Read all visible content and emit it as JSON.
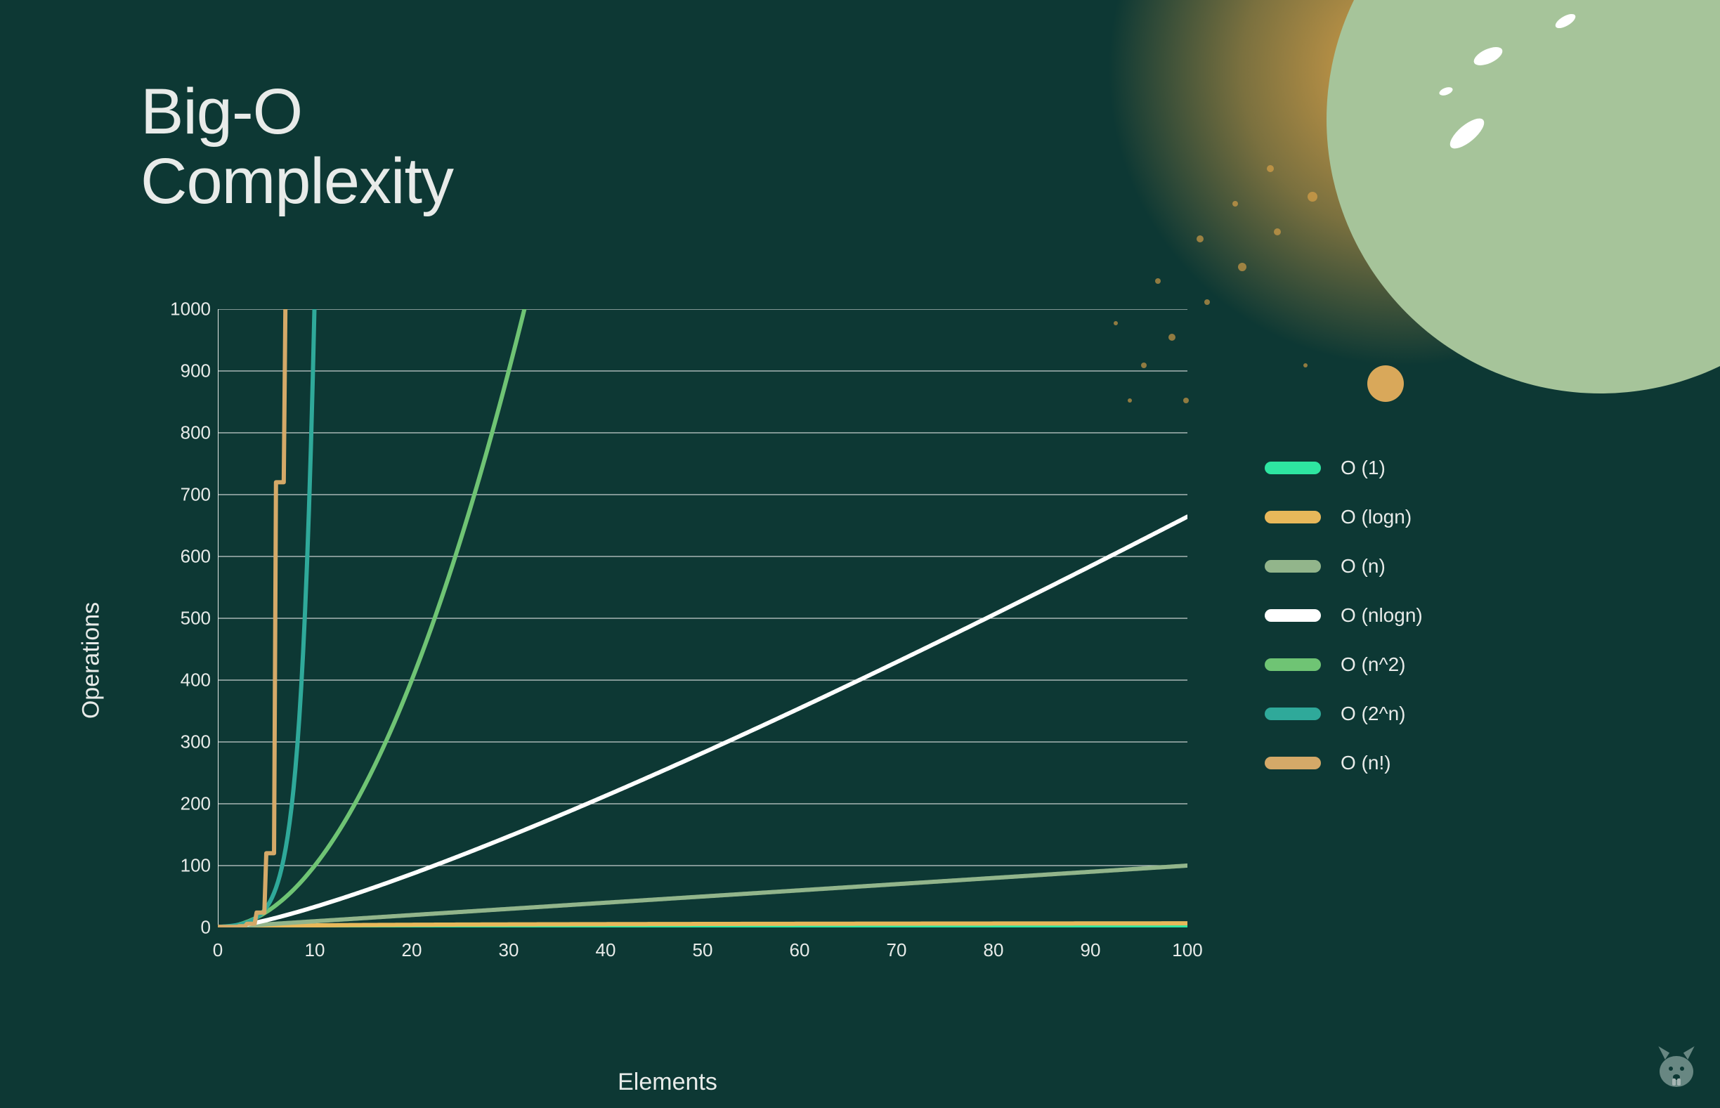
{
  "title_line1": "Big-O",
  "title_line2": "Complexity",
  "chart": {
    "type": "line",
    "xlabel": "Elements",
    "ylabel": "Operations",
    "xlabel_fontsize": 34,
    "ylabel_fontsize": 34,
    "tick_fontsize": 26,
    "xlim": [
      0,
      100
    ],
    "ylim": [
      0,
      1000
    ],
    "xticks": [
      0,
      10,
      20,
      30,
      40,
      50,
      60,
      70,
      80,
      90,
      100
    ],
    "yticks": [
      0,
      100,
      200,
      300,
      400,
      500,
      600,
      700,
      800,
      900,
      1000
    ],
    "background_color": "#0d3834",
    "grid_color": "#e8ebe9",
    "grid_opacity": 0.85,
    "axis_color": "#e8ebe9",
    "text_color": "#e8ebe9",
    "line_width": 6,
    "series": [
      {
        "name": "O (1)",
        "color": "#2ee5a1",
        "fn": "const",
        "const_value": 1
      },
      {
        "name": "O (logn)",
        "color": "#e8b85a",
        "fn": "logn"
      },
      {
        "name": "O (n)",
        "color": "#92b58b",
        "fn": "n"
      },
      {
        "name": "O (nlogn)",
        "color": "#ffffff",
        "fn": "nlogn"
      },
      {
        "name": "O (n^2)",
        "color": "#6fc474",
        "fn": "n2"
      },
      {
        "name": "O (2^n)",
        "color": "#2fa99a",
        "fn": "2n"
      },
      {
        "name": "O (n!)",
        "color": "#d4a968",
        "fn": "nfact"
      }
    ]
  },
  "legend": {
    "swatch_width": 80,
    "swatch_height": 18,
    "swatch_radius": 9,
    "label_fontsize": 28,
    "row_gap": 38,
    "items": [
      {
        "label": "O (1)",
        "color": "#2ee5a1"
      },
      {
        "label": "O (logn)",
        "color": "#e8b85a"
      },
      {
        "label": "O (n)",
        "color": "#92b58b"
      },
      {
        "label": "O (nlogn)",
        "color": "#ffffff"
      },
      {
        "label": "O (n^2)",
        "color": "#6fc474"
      },
      {
        "label": "O (2^n)",
        "color": "#2fa99a"
      },
      {
        "label": "O (n!)",
        "color": "#d4a968"
      }
    ]
  },
  "decorations": {
    "planet_color": "#a6c49a",
    "splash_color": "#e8a94a",
    "dot_color": "#d9a85a",
    "mascot_color": "#8fa9a3"
  }
}
